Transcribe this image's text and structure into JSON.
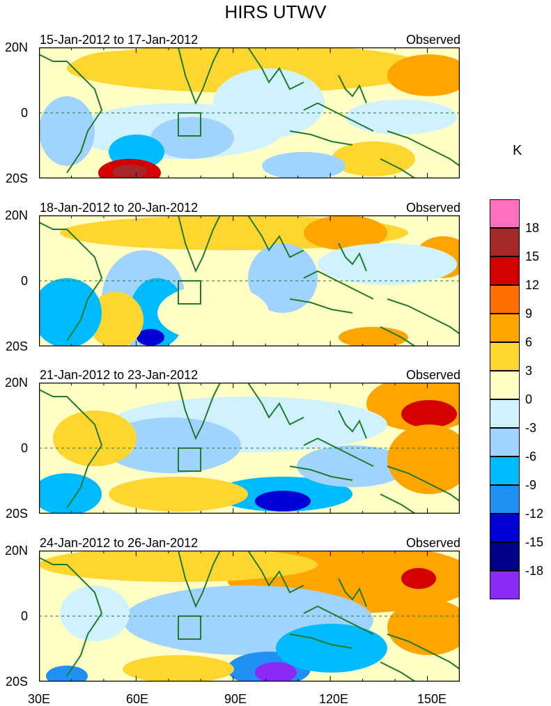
{
  "title": "HIRS UTWV",
  "unit": "K",
  "y_labels": [
    "20N",
    "0",
    "20S"
  ],
  "x_labels": [
    "30E",
    "60E",
    "90E",
    "120E",
    "150E"
  ],
  "panels": [
    {
      "dates": "15-Jan-2012 to 17-Jan-2012",
      "label": "Observed"
    },
    {
      "dates": "18-Jan-2012 to 20-Jan-2012",
      "label": "Observed"
    },
    {
      "dates": "21-Jan-2012 to 23-Jan-2012",
      "label": "Observed"
    },
    {
      "dates": "24-Jan-2012 to 26-Jan-2012",
      "label": "Observed"
    }
  ],
  "colorbar": {
    "labels": [
      "18",
      "15",
      "12",
      "9",
      "6",
      "3",
      "0",
      "-3",
      "-6",
      "-9",
      "-12",
      "-15",
      "-18"
    ],
    "colors": [
      "#ff6fbf",
      "#a52828",
      "#d40000",
      "#ff6e00",
      "#ffa500",
      "#ffd530",
      "#ffffc6",
      "#d0f2ff",
      "#a0d4ff",
      "#00bbff",
      "#2090f5",
      "#0000d5",
      "#00008a",
      "#8b2af5"
    ]
  },
  "colors": {
    "land_outline": "#1f7a2e",
    "background_field": "#ffffc6"
  }
}
